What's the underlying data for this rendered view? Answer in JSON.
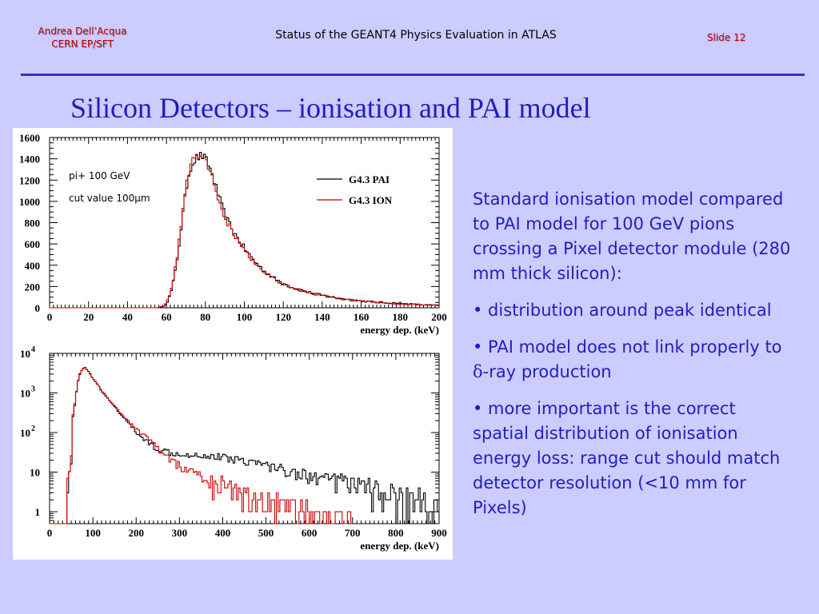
{
  "header": {
    "author_line1": "Andrea Dell’Acqua",
    "author_line2": "CERN EP/SFT",
    "title": "Status of the GEANT4 Physics Evaluation in ATLAS",
    "slide_label": "Slide 12"
  },
  "slide_title": "Silicon Detectors – ionisation and PAI model",
  "body": {
    "para1": "Standard ionisation model compared  to PAI model for 100 GeV pions crossing a Pixel detector module (280 mm thick silicon):",
    "bullet1": "• distribution around peak identical",
    "bullet2_pre": "• PAI model does not link properly to ",
    "bullet2_sym": "δ",
    "bullet2_post": "-ray production",
    "bullet3": "• more important is the correct spatial distribution of ionisation energy loss: range cut should match detector resolution (<10 mm for Pixels)"
  },
  "colors": {
    "pai": "#000000",
    "ion": "#cc0000",
    "text": "#1f1fbf",
    "accent": "#c00000"
  },
  "chart_data": [
    {
      "type": "line",
      "scale": "linear",
      "xlabel": "energy dep. (keV)",
      "ylabel": "",
      "xlim": [
        0,
        200
      ],
      "ylim": [
        0,
        1600
      ],
      "xticks": [
        0,
        20,
        40,
        60,
        80,
        100,
        120,
        140,
        160,
        180,
        200
      ],
      "yticks": [
        0,
        200,
        400,
        600,
        800,
        1000,
        1200,
        1400,
        1600
      ],
      "annotations": [
        "pi+ 100 GeV",
        "cut value 100μm"
      ],
      "legend": "top-right",
      "series": [
        {
          "name": "G4.3 PAI",
          "color": "#000000",
          "x": [
            55,
            58,
            60,
            62,
            64,
            66,
            68,
            70,
            72,
            74,
            76,
            78,
            80,
            82,
            84,
            86,
            88,
            90,
            92,
            95,
            100,
            105,
            110,
            115,
            120,
            125,
            130,
            140,
            150,
            160,
            170,
            180,
            190,
            200
          ],
          "y": [
            0,
            10,
            40,
            120,
            280,
            520,
            820,
            1100,
            1300,
            1380,
            1410,
            1430,
            1400,
            1330,
            1220,
            1100,
            980,
            880,
            800,
            700,
            560,
            440,
            350,
            280,
            230,
            190,
            160,
            115,
            85,
            65,
            50,
            40,
            30,
            22
          ]
        },
        {
          "name": "G4.3 ION",
          "color": "#cc0000",
          "x": [
            55,
            58,
            60,
            62,
            64,
            66,
            68,
            70,
            72,
            74,
            76,
            78,
            80,
            82,
            84,
            86,
            88,
            90,
            92,
            95,
            100,
            105,
            110,
            115,
            120,
            125,
            130,
            140,
            150,
            160,
            170,
            180,
            190,
            200
          ],
          "y": [
            0,
            12,
            45,
            130,
            300,
            560,
            860,
            1140,
            1330,
            1400,
            1430,
            1440,
            1390,
            1310,
            1200,
            1080,
            960,
            860,
            780,
            690,
            550,
            430,
            345,
            275,
            225,
            188,
            158,
            112,
            82,
            62,
            48,
            38,
            28,
            20
          ]
        }
      ]
    },
    {
      "type": "line",
      "scale": "log",
      "xlabel": "energy dep. (keV)",
      "ylabel": "",
      "xlim": [
        0,
        900
      ],
      "ylim": [
        0.5,
        10000
      ],
      "xticks": [
        0,
        100,
        200,
        300,
        400,
        500,
        600,
        700,
        800,
        900
      ],
      "ytick_labels": [
        "1",
        "10",
        "10^2",
        "10^3",
        "10^4"
      ],
      "series": [
        {
          "name": "G4.3 PAI",
          "color": "#000000",
          "x": [
            40,
            50,
            60,
            70,
            80,
            90,
            100,
            120,
            140,
            160,
            180,
            200,
            220,
            240,
            260,
            280,
            300,
            350,
            400,
            450,
            500,
            550,
            600,
            650,
            700,
            750,
            800,
            850,
            900
          ],
          "y": [
            1,
            20,
            600,
            3000,
            4500,
            3500,
            2300,
            1100,
            580,
            320,
            180,
            100,
            65,
            45,
            35,
            32,
            30,
            27,
            24,
            20,
            15,
            11,
            8,
            6,
            4.5,
            3.5,
            2.5,
            2,
            1.5
          ]
        },
        {
          "name": "G4.3 ION",
          "color": "#cc0000",
          "x": [
            40,
            50,
            60,
            70,
            80,
            90,
            100,
            120,
            140,
            160,
            180,
            200,
            220,
            240,
            260,
            280,
            300,
            350,
            400,
            450,
            500,
            550,
            600,
            650,
            700
          ],
          "y": [
            1,
            22,
            650,
            3100,
            4600,
            3500,
            2300,
            1100,
            590,
            340,
            200,
            120,
            80,
            50,
            30,
            20,
            14,
            7,
            4,
            2.5,
            1.8,
            1.2,
            1,
            0.8,
            0.6
          ]
        }
      ]
    }
  ]
}
